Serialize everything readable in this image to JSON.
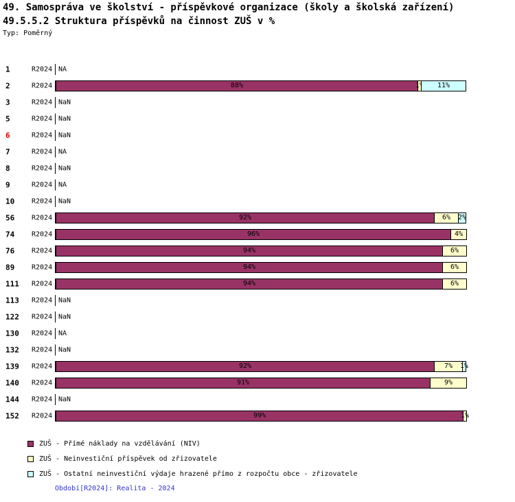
{
  "title": {
    "line1": "49. Samospráva ve školství - příspěvkové organizace (školy a školská zařízení)",
    "line2": "49.5.5.2 Struktura příspěvků na činnost ZUŠ v %",
    "subtitle": "Typ: Poměrný"
  },
  "footer": "Období[R2024]: Realita - 2024",
  "colors": {
    "niv": "#993366",
    "prispevek": "#FFFFCC",
    "ostatni": "#CCFFFF",
    "highlight_row": "#CC0000",
    "footer_text": "#3333CC",
    "bar_border": "#000000"
  },
  "chart_data": {
    "type": "bar",
    "orientation": "horizontal",
    "stacked": true,
    "unit": "%",
    "x_range": [
      0,
      100
    ],
    "grid": false,
    "legend_position": "bottom-left",
    "series": [
      {
        "key": "niv",
        "label": "ZUŠ - Přímé náklady na vzdělávání (NIV)",
        "color": "#993366"
      },
      {
        "key": "prispevek",
        "label": "ZUŠ - Neinvestiční příspěvek od zřizovatele",
        "color": "#FFFFCC"
      },
      {
        "key": "ostatni",
        "label": "ZUŠ - Ostatní neinvestiční výdaje hrazené přímo z rozpočtu obce - zřizovatele",
        "color": "#CCFFFF"
      }
    ],
    "rows": [
      {
        "id": "1",
        "period": "R2024",
        "status": "NA"
      },
      {
        "id": "2",
        "period": "R2024",
        "segments": [
          {
            "series": "niv",
            "value": 88,
            "label": "88%"
          },
          {
            "series": "prispevek",
            "value": 1,
            "label": "1%"
          },
          {
            "series": "ostatni",
            "value": 11,
            "label": "11%"
          }
        ]
      },
      {
        "id": "3",
        "period": "R2024",
        "status": "NaN"
      },
      {
        "id": "5",
        "period": "R2024",
        "status": "NaN"
      },
      {
        "id": "6",
        "period": "R2024",
        "status": "NaN",
        "highlight": true
      },
      {
        "id": "7",
        "period": "R2024",
        "status": "NA"
      },
      {
        "id": "8",
        "period": "R2024",
        "status": "NaN"
      },
      {
        "id": "9",
        "period": "R2024",
        "status": "NA"
      },
      {
        "id": "10",
        "period": "R2024",
        "status": "NaN"
      },
      {
        "id": "56",
        "period": "R2024",
        "segments": [
          {
            "series": "niv",
            "value": 92,
            "label": "92%"
          },
          {
            "series": "prispevek",
            "value": 6,
            "label": "6%"
          },
          {
            "series": "ostatni",
            "value": 2,
            "label": "2%"
          }
        ]
      },
      {
        "id": "74",
        "period": "R2024",
        "segments": [
          {
            "series": "niv",
            "value": 96,
            "label": "96%"
          },
          {
            "series": "prispevek",
            "value": 4,
            "label": "4%"
          }
        ]
      },
      {
        "id": "76",
        "period": "R2024",
        "segments": [
          {
            "series": "niv",
            "value": 94,
            "label": "94%"
          },
          {
            "series": "prispevek",
            "value": 6,
            "label": "6%"
          }
        ]
      },
      {
        "id": "89",
        "period": "R2024",
        "segments": [
          {
            "series": "niv",
            "value": 94,
            "label": "94%"
          },
          {
            "series": "prispevek",
            "value": 6,
            "label": "6%"
          }
        ]
      },
      {
        "id": "111",
        "period": "R2024",
        "segments": [
          {
            "series": "niv",
            "value": 94,
            "label": "94%"
          },
          {
            "series": "prispevek",
            "value": 6,
            "label": "6%"
          }
        ]
      },
      {
        "id": "113",
        "period": "R2024",
        "status": "NaN"
      },
      {
        "id": "122",
        "period": "R2024",
        "status": "NaN"
      },
      {
        "id": "130",
        "period": "R2024",
        "status": "NA"
      },
      {
        "id": "132",
        "period": "R2024",
        "status": "NaN"
      },
      {
        "id": "139",
        "period": "R2024",
        "segments": [
          {
            "series": "niv",
            "value": 92,
            "label": "92%"
          },
          {
            "series": "prispevek",
            "value": 7,
            "label": "7%"
          },
          {
            "series": "ostatni",
            "value": 1,
            "label": "1%"
          }
        ]
      },
      {
        "id": "140",
        "period": "R2024",
        "segments": [
          {
            "series": "niv",
            "value": 91,
            "label": "91%"
          },
          {
            "series": "prispevek",
            "value": 9,
            "label": "9%"
          }
        ]
      },
      {
        "id": "144",
        "period": "R2024",
        "status": "NaN"
      },
      {
        "id": "152",
        "period": "R2024",
        "segments": [
          {
            "series": "niv",
            "value": 99,
            "label": "99%"
          },
          {
            "series": "prispevek",
            "value": 1,
            "label": "1%"
          }
        ]
      }
    ]
  }
}
